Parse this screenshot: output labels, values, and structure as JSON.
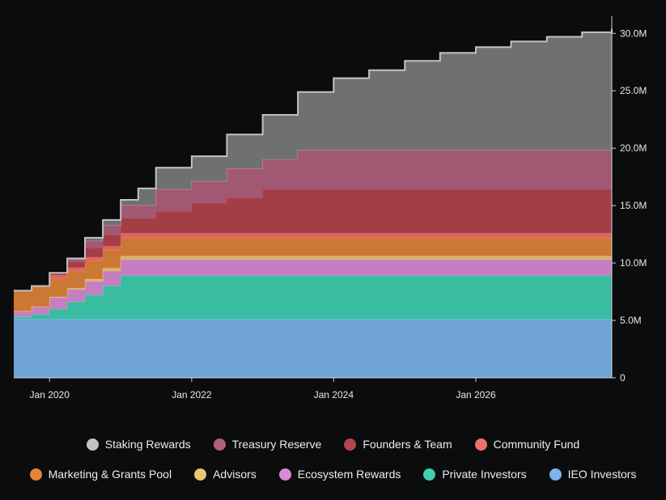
{
  "chart_data": {
    "type": "area",
    "stacked": true,
    "x_axis": {
      "ticks": [
        {
          "label": "Jan 2020",
          "date": "2020-01-01"
        },
        {
          "label": "Jan 2022",
          "date": "2022-01-01"
        },
        {
          "label": "Jan 2024",
          "date": "2024-01-01"
        },
        {
          "label": "Jan 2026",
          "date": "2026-01-01"
        }
      ],
      "range": [
        "2019-07-01",
        "2027-12-01"
      ]
    },
    "y_axis": {
      "position": "right",
      "range": [
        0,
        31.5
      ],
      "ticks": [
        {
          "value": 0,
          "label": "0"
        },
        {
          "value": 5,
          "label": "5.0M"
        },
        {
          "value": 10,
          "label": "10.0M"
        },
        {
          "value": 15,
          "label": "15.0M"
        },
        {
          "value": 20,
          "label": "20.0M"
        },
        {
          "value": 25,
          "label": "25.0M"
        },
        {
          "value": 30,
          "label": "30.0M"
        }
      ]
    },
    "grid": false,
    "legend_position": "bottom",
    "x": [
      "2019-07-01",
      "2019-10-01",
      "2020-01-01",
      "2020-04-01",
      "2020-07-01",
      "2020-10-01",
      "2021-01-01",
      "2021-04-01",
      "2021-07-01",
      "2022-01-01",
      "2022-07-01",
      "2023-01-01",
      "2023-07-01",
      "2024-01-01",
      "2024-07-01",
      "2025-01-01",
      "2025-07-01",
      "2026-01-01",
      "2026-07-01",
      "2027-01-01",
      "2027-07-01",
      "2027-12-01"
    ],
    "series": [
      {
        "name": "IEO Investors",
        "color": "#7cb5ec",
        "values": [
          5.1,
          5.1,
          5.1,
          5.1,
          5.1,
          5.1,
          5.1,
          5.1,
          5.1,
          5.1,
          5.1,
          5.1,
          5.1,
          5.1,
          5.1,
          5.1,
          5.1,
          5.1,
          5.1,
          5.1,
          5.1,
          5.1
        ]
      },
      {
        "name": "Private Investors",
        "color": "#3fcfb0",
        "values": [
          0.2,
          0.4,
          0.9,
          1.5,
          2.1,
          2.9,
          3.8,
          3.8,
          3.8,
          3.8,
          3.8,
          3.8,
          3.8,
          3.8,
          3.8,
          3.8,
          3.8,
          3.8,
          3.8,
          3.8,
          3.8,
          3.8
        ]
      },
      {
        "name": "Ecosystem Rewards",
        "color": "#d98bd6",
        "values": [
          0.5,
          0.7,
          1.0,
          1.1,
          1.2,
          1.3,
          1.4,
          1.4,
          1.4,
          1.4,
          1.4,
          1.4,
          1.4,
          1.4,
          1.4,
          1.4,
          1.4,
          1.4,
          1.4,
          1.4,
          1.4,
          1.4
        ]
      },
      {
        "name": "Advisors",
        "color": "#e8c870",
        "values": [
          0.0,
          0.0,
          0.05,
          0.1,
          0.2,
          0.25,
          0.3,
          0.3,
          0.3,
          0.3,
          0.3,
          0.3,
          0.3,
          0.3,
          0.3,
          0.3,
          0.3,
          0.3,
          0.3,
          0.3,
          0.3,
          0.3
        ]
      },
      {
        "name": "Marketing & Grants Pool",
        "color": "#e0843a",
        "values": [
          1.8,
          1.8,
          1.6,
          1.5,
          1.6,
          1.6,
          1.6,
          1.6,
          1.6,
          1.6,
          1.6,
          1.6,
          1.6,
          1.6,
          1.6,
          1.6,
          1.6,
          1.6,
          1.6,
          1.6,
          1.6,
          1.6
        ]
      },
      {
        "name": "Community Fund",
        "color": "#f07070",
        "values": [
          0.0,
          0.0,
          0.3,
          0.3,
          0.3,
          0.3,
          0.4,
          0.4,
          0.4,
          0.4,
          0.4,
          0.4,
          0.4,
          0.4,
          0.4,
          0.4,
          0.4,
          0.4,
          0.4,
          0.4,
          0.4,
          0.4
        ]
      },
      {
        "name": "Founders & Team",
        "color": "#b5444c",
        "values": [
          0.0,
          0.0,
          0.2,
          0.5,
          0.8,
          1.0,
          1.3,
          1.3,
          1.9,
          2.6,
          3.1,
          3.8,
          3.8,
          3.8,
          3.8,
          3.8,
          3.8,
          3.8,
          3.8,
          3.8,
          3.8,
          3.8
        ]
      },
      {
        "name": "Treasury Reserve",
        "color": "#b0607e",
        "values": [
          0.0,
          0.0,
          0.0,
          0.2,
          0.6,
          0.8,
          1.1,
          1.1,
          1.9,
          1.9,
          2.5,
          2.6,
          3.4,
          3.4,
          3.4,
          3.4,
          3.4,
          3.4,
          3.4,
          3.4,
          3.4,
          3.4
        ]
      },
      {
        "name": "Staking Rewards",
        "color": "#c2c2c2",
        "values": [
          0.0,
          0.0,
          0.0,
          0.1,
          0.3,
          0.5,
          0.5,
          1.5,
          1.9,
          2.2,
          3.0,
          3.9,
          5.1,
          6.3,
          7.0,
          7.8,
          8.5,
          9.0,
          9.5,
          9.9,
          10.3,
          10.6
        ]
      }
    ]
  }
}
